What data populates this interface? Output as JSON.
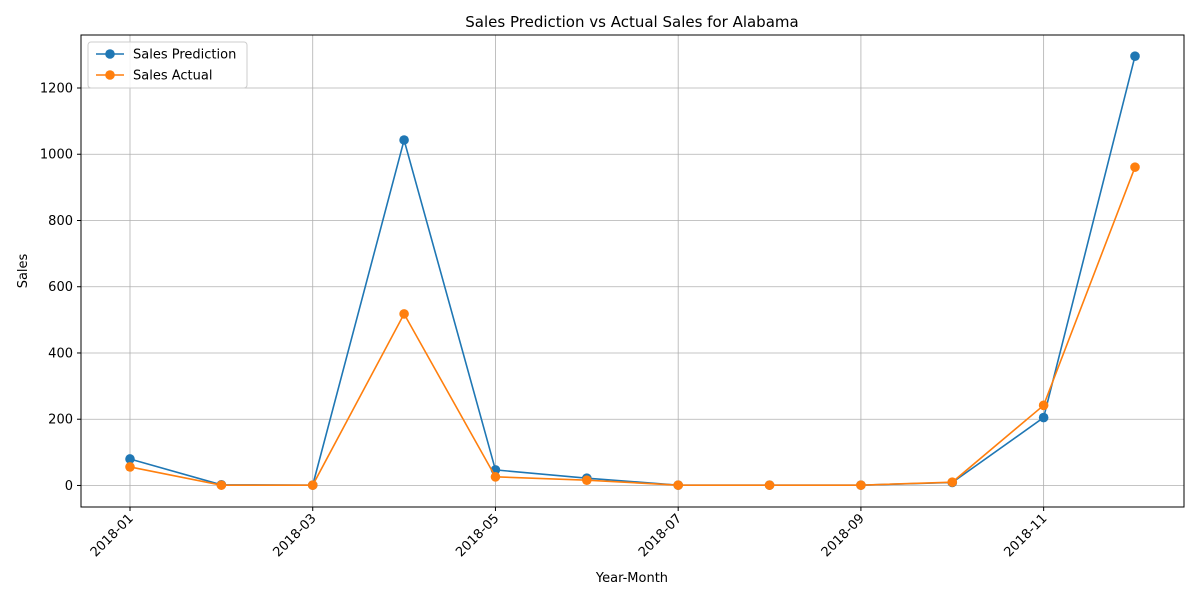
{
  "chart_data": {
    "type": "line",
    "title": "Sales Prediction vs Actual Sales for Alabama",
    "xlabel": "Year-Month",
    "ylabel": "Sales",
    "x": [
      "2018-01",
      "2018-02",
      "2018-03",
      "2018-04",
      "2018-05",
      "2018-06",
      "2018-07",
      "2018-08",
      "2018-09",
      "2018-10",
      "2018-11",
      "2018-12"
    ],
    "x_tick_labels": [
      "2018-01",
      "2018-03",
      "2018-05",
      "2018-07",
      "2018-09",
      "2018-11"
    ],
    "y_ticks": [
      0,
      200,
      400,
      600,
      800,
      1000,
      1200
    ],
    "ylim": [
      -65,
      1360
    ],
    "grid": true,
    "legend_position": "top-left",
    "series": [
      {
        "name": "Sales Prediction",
        "color": "#1f77b4",
        "values": [
          80,
          2,
          1,
          1043,
          47,
          22,
          1,
          1,
          1,
          9,
          205,
          1296
        ]
      },
      {
        "name": "Sales Actual",
        "color": "#ff7f0e",
        "values": [
          56,
          1,
          1,
          518,
          26,
          16,
          1,
          1,
          1,
          10,
          242,
          961
        ]
      }
    ]
  }
}
